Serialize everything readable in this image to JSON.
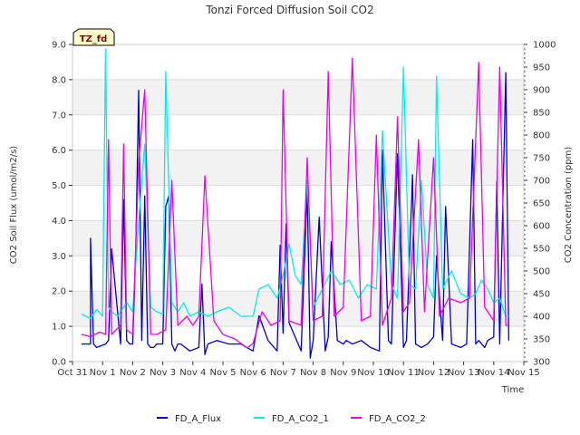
{
  "chart_data": {
    "type": "line",
    "title": "Tonzi Forced Diffusion Soil CO2",
    "badge": "TZ_fd",
    "xlabel": "Time",
    "ylabel_left": "CO2 Soil Flux (umol/m2/s)",
    "ylabel_right": "CO2 Concentration (ppm)",
    "ylim_left": [
      0,
      9
    ],
    "ylim_right": [
      300,
      1000
    ],
    "xlim": [
      0,
      15
    ],
    "x_ticks": [
      "Oct 31",
      "Nov 1",
      "Nov 2",
      "Nov 3",
      "Nov 4",
      "Nov 5",
      "Nov 6",
      "Nov 7",
      "Nov 8",
      "Nov 9",
      "Nov 10",
      "Nov 11",
      "Nov 12",
      "Nov 13",
      "Nov 14",
      "Nov 15"
    ],
    "y_ticks_left": [
      "0.0",
      "1.0",
      "2.0",
      "3.0",
      "4.0",
      "5.0",
      "6.0",
      "7.0",
      "8.0",
      "9.0"
    ],
    "y_ticks_right": [
      "300",
      "350",
      "400",
      "450",
      "500",
      "550",
      "600",
      "650",
      "700",
      "750",
      "800",
      "850",
      "900",
      "950",
      "1000"
    ],
    "grid": true,
    "legend_position": "bottom-center",
    "series": [
      {
        "name": "FD_A_Flux",
        "axis": "left",
        "color": "#0000cc",
        "x": [
          0.3,
          0.6,
          0.6,
          0.7,
          0.8,
          1.1,
          1.2,
          1.3,
          1.6,
          1.7,
          1.8,
          1.9,
          2.0,
          2.1,
          2.2,
          2.3,
          2.4,
          2.5,
          2.6,
          2.7,
          2.8,
          3.0,
          3.1,
          3.2,
          3.3,
          3.4,
          3.5,
          3.6,
          3.9,
          4.2,
          4.3,
          4.4,
          4.5,
          4.8,
          5.2,
          5.6,
          6.0,
          6.2,
          6.5,
          6.8,
          6.9,
          7.0,
          7.1,
          7.2,
          7.4,
          7.6,
          7.8,
          7.9,
          8.0,
          8.2,
          8.4,
          8.5,
          8.6,
          8.8,
          9.0,
          9.1,
          9.3,
          9.6,
          9.9,
          10.2,
          10.3,
          10.5,
          10.6,
          10.8,
          11.0,
          11.1,
          11.3,
          11.4,
          11.6,
          11.8,
          12.0,
          12.1,
          12.3,
          12.4,
          12.6,
          12.9,
          13.1,
          13.3,
          13.4,
          13.5,
          13.7,
          13.8,
          14.0,
          14.1,
          14.2,
          14.4,
          14.5
        ],
        "y": [
          0.5,
          0.5,
          3.5,
          0.5,
          0.4,
          0.5,
          0.6,
          3.2,
          0.5,
          4.6,
          0.6,
          0.5,
          0.5,
          3.0,
          7.7,
          0.6,
          4.7,
          0.5,
          0.4,
          0.4,
          0.5,
          0.5,
          4.4,
          4.7,
          0.5,
          0.3,
          0.5,
          0.5,
          0.3,
          0.4,
          2.2,
          0.2,
          0.5,
          0.6,
          0.5,
          0.5,
          0.3,
          1.3,
          0.6,
          0.3,
          3.3,
          0.8,
          3.9,
          1.1,
          0.7,
          0.3,
          4.9,
          0.1,
          0.6,
          4.1,
          0.3,
          0.7,
          3.4,
          0.6,
          0.5,
          0.6,
          0.5,
          0.6,
          0.4,
          0.3,
          6.0,
          0.6,
          0.5,
          5.9,
          0.4,
          0.6,
          5.3,
          0.5,
          0.4,
          0.5,
          0.7,
          3.0,
          0.6,
          4.4,
          0.5,
          0.4,
          0.5,
          6.3,
          0.5,
          0.6,
          0.4,
          0.6,
          0.7,
          5.1,
          0.5,
          8.2,
          0.6
        ]
      },
      {
        "name": "FD_A_CO2_1",
        "axis": "right",
        "color": "#00eeee",
        "x": [
          0.3,
          0.6,
          0.8,
          1.0,
          1.1,
          1.2,
          1.3,
          1.5,
          1.8,
          2.0,
          2.2,
          2.4,
          2.6,
          2.8,
          3.0,
          3.1,
          3.3,
          3.5,
          3.7,
          3.9,
          4.2,
          4.5,
          4.8,
          5.2,
          5.6,
          6.0,
          6.2,
          6.5,
          6.8,
          7.0,
          7.2,
          7.4,
          7.6,
          7.8,
          8.0,
          8.3,
          8.6,
          8.9,
          9.2,
          9.5,
          9.8,
          10.1,
          10.3,
          10.6,
          10.8,
          11.0,
          11.2,
          11.4,
          11.6,
          11.8,
          12.0,
          12.1,
          12.3,
          12.6,
          12.9,
          13.2,
          13.4,
          13.6,
          13.8,
          14.0,
          14.2,
          14.4,
          14.5
        ],
        "y": [
          405,
          395,
          415,
          400,
          990,
          420,
          410,
          400,
          430,
          410,
          610,
          780,
          420,
          410,
          405,
          940,
          430,
          410,
          430,
          400,
          410,
          400,
          410,
          420,
          400,
          400,
          460,
          470,
          440,
          490,
          560,
          490,
          470,
          700,
          420,
          460,
          500,
          470,
          480,
          440,
          470,
          460,
          810,
          470,
          440,
          950,
          470,
          460,
          700,
          470,
          440,
          930,
          460,
          500,
          450,
          440,
          450,
          480,
          460,
          430,
          440,
          400,
          400
        ]
      },
      {
        "name": "FD_A_CO2_2",
        "axis": "right",
        "color": "#ee00ee",
        "x": [
          0.3,
          0.6,
          0.9,
          1.1,
          1.2,
          1.3,
          1.6,
          1.7,
          1.8,
          2.0,
          2.2,
          2.4,
          2.6,
          2.8,
          3.1,
          3.3,
          3.5,
          3.8,
          4.0,
          4.2,
          4.4,
          4.7,
          5.0,
          5.4,
          5.8,
          6.0,
          6.3,
          6.6,
          6.9,
          7.0,
          7.2,
          7.6,
          7.8,
          8.0,
          8.3,
          8.5,
          8.7,
          9.0,
          9.3,
          9.6,
          9.9,
          10.1,
          10.3,
          10.6,
          10.8,
          11.0,
          11.2,
          11.5,
          11.7,
          12.0,
          12.2,
          12.5,
          12.9,
          13.2,
          13.5,
          13.7,
          14.0,
          14.2,
          14.4,
          14.5
        ],
        "y": [
          360,
          355,
          365,
          360,
          790,
          360,
          380,
          780,
          370,
          360,
          740,
          900,
          360,
          360,
          370,
          700,
          380,
          400,
          380,
          400,
          710,
          390,
          360,
          350,
          330,
          340,
          410,
          380,
          390,
          900,
          390,
          380,
          750,
          390,
          400,
          940,
          400,
          420,
          970,
          390,
          400,
          800,
          380,
          440,
          840,
          410,
          430,
          790,
          410,
          750,
          400,
          440,
          430,
          440,
          960,
          420,
          390,
          950,
          380,
          380
        ]
      }
    ]
  }
}
